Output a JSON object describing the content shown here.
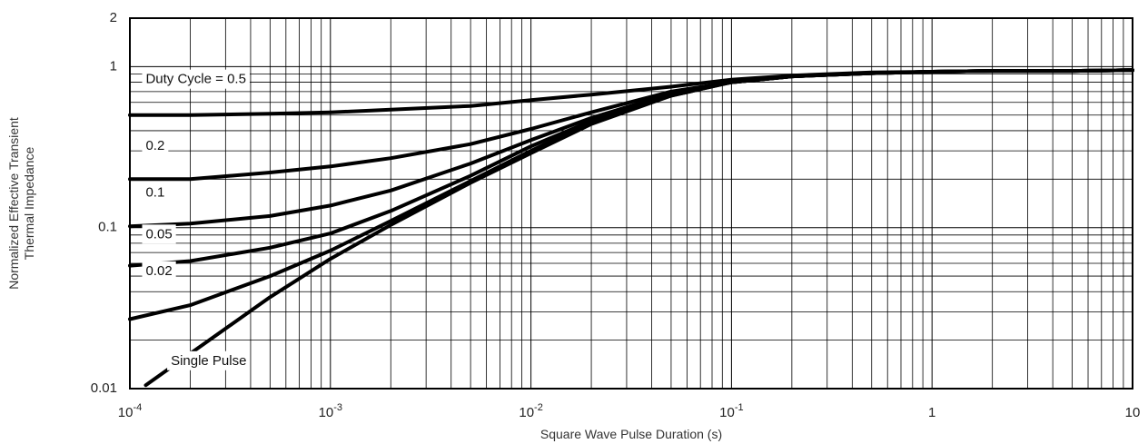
{
  "chart_data": {
    "type": "line",
    "title": "",
    "xlabel": "Square Wave Pulse Duration (s)",
    "ylabel_lines": [
      "Normalized Effective Transient",
      "Thermal Impedance"
    ],
    "xscale": "log",
    "yscale": "log",
    "xlim": [
      0.0001,
      10
    ],
    "ylim": [
      0.01,
      2
    ],
    "grid": true,
    "legend": "inline labels",
    "x_ticks": [
      {
        "value": 0.0001,
        "base": "10",
        "exp": "-4"
      },
      {
        "value": 0.001,
        "base": "10",
        "exp": "-3"
      },
      {
        "value": 0.01,
        "base": "10",
        "exp": "-2"
      },
      {
        "value": 0.1,
        "base": "10",
        "exp": "-1"
      },
      {
        "value": 1,
        "base": "1",
        "exp": ""
      },
      {
        "value": 10,
        "base": "10",
        "exp": ""
      }
    ],
    "y_ticks": [
      {
        "value": 2,
        "label": "2"
      },
      {
        "value": 1,
        "label": "1"
      },
      {
        "value": 0.1,
        "label": "0.1"
      },
      {
        "value": 0.01,
        "label": "0.01"
      }
    ],
    "series": [
      {
        "name": "Duty Cycle = 0.5",
        "label_at": [
          0.00012,
          0.83
        ],
        "points": [
          [
            0.0001,
            0.5
          ],
          [
            0.0002,
            0.5
          ],
          [
            0.0005,
            0.51
          ],
          [
            0.001,
            0.52
          ],
          [
            0.002,
            0.54
          ],
          [
            0.005,
            0.57
          ],
          [
            0.01,
            0.62
          ],
          [
            0.02,
            0.67
          ],
          [
            0.05,
            0.75
          ],
          [
            0.1,
            0.83
          ],
          [
            0.2,
            0.88
          ],
          [
            0.5,
            0.92
          ],
          [
            1,
            0.93
          ],
          [
            2,
            0.94
          ],
          [
            5,
            0.94
          ],
          [
            10,
            0.95
          ]
        ]
      },
      {
        "name": "0.2",
        "label_at": [
          0.00012,
          0.32
        ],
        "points": [
          [
            0.0001,
            0.2
          ],
          [
            0.0002,
            0.2
          ],
          [
            0.0005,
            0.22
          ],
          [
            0.001,
            0.24
          ],
          [
            0.002,
            0.27
          ],
          [
            0.005,
            0.33
          ],
          [
            0.01,
            0.41
          ],
          [
            0.02,
            0.52
          ],
          [
            0.05,
            0.7
          ],
          [
            0.1,
            0.8
          ],
          [
            0.2,
            0.87
          ],
          [
            0.5,
            0.91
          ],
          [
            1,
            0.93
          ],
          [
            2,
            0.94
          ],
          [
            5,
            0.94
          ],
          [
            10,
            0.95
          ]
        ]
      },
      {
        "name": "0.1",
        "label_at": [
          0.00012,
          0.164
        ],
        "points": [
          [
            0.0001,
            0.102
          ],
          [
            0.0002,
            0.106
          ],
          [
            0.0005,
            0.118
          ],
          [
            0.001,
            0.137
          ],
          [
            0.002,
            0.17
          ],
          [
            0.005,
            0.25
          ],
          [
            0.01,
            0.35
          ],
          [
            0.02,
            0.48
          ],
          [
            0.05,
            0.68
          ],
          [
            0.1,
            0.8
          ],
          [
            0.2,
            0.87
          ],
          [
            0.5,
            0.91
          ],
          [
            1,
            0.93
          ],
          [
            2,
            0.94
          ],
          [
            5,
            0.94
          ],
          [
            10,
            0.95
          ]
        ]
      },
      {
        "name": "0.05",
        "label_at": [
          0.00012,
          0.0905
        ],
        "points": [
          [
            0.0001,
            0.058
          ],
          [
            0.0002,
            0.062
          ],
          [
            0.0005,
            0.075
          ],
          [
            0.001,
            0.092
          ],
          [
            0.002,
            0.127
          ],
          [
            0.005,
            0.21
          ],
          [
            0.01,
            0.32
          ],
          [
            0.02,
            0.46
          ],
          [
            0.05,
            0.67
          ],
          [
            0.1,
            0.8
          ],
          [
            0.2,
            0.87
          ],
          [
            0.5,
            0.91
          ],
          [
            1,
            0.93
          ],
          [
            2,
            0.94
          ],
          [
            5,
            0.94
          ],
          [
            10,
            0.95
          ]
        ]
      },
      {
        "name": "0.02",
        "label_at": [
          0.00012,
          0.0535
        ],
        "points": [
          [
            0.0001,
            0.027
          ],
          [
            0.0002,
            0.033
          ],
          [
            0.0005,
            0.05
          ],
          [
            0.001,
            0.072
          ],
          [
            0.002,
            0.11
          ],
          [
            0.005,
            0.195
          ],
          [
            0.01,
            0.3
          ],
          [
            0.02,
            0.45
          ],
          [
            0.05,
            0.66
          ],
          [
            0.1,
            0.8
          ],
          [
            0.2,
            0.87
          ],
          [
            0.5,
            0.91
          ],
          [
            1,
            0.93
          ],
          [
            2,
            0.94
          ],
          [
            5,
            0.94
          ],
          [
            10,
            0.95
          ]
        ]
      },
      {
        "name": "Single Pulse",
        "label_at": [
          0.00016,
          0.0148
        ],
        "points": [
          [
            0.00012,
            0.0105
          ],
          [
            0.0002,
            0.0165
          ],
          [
            0.0005,
            0.037
          ],
          [
            0.001,
            0.064
          ],
          [
            0.002,
            0.104
          ],
          [
            0.005,
            0.19
          ],
          [
            0.01,
            0.29
          ],
          [
            0.02,
            0.44
          ],
          [
            0.05,
            0.66
          ],
          [
            0.1,
            0.8
          ],
          [
            0.2,
            0.87
          ],
          [
            0.5,
            0.91
          ],
          [
            1,
            0.93
          ],
          [
            2,
            0.94
          ],
          [
            5,
            0.94
          ],
          [
            10,
            0.95
          ]
        ]
      }
    ]
  }
}
